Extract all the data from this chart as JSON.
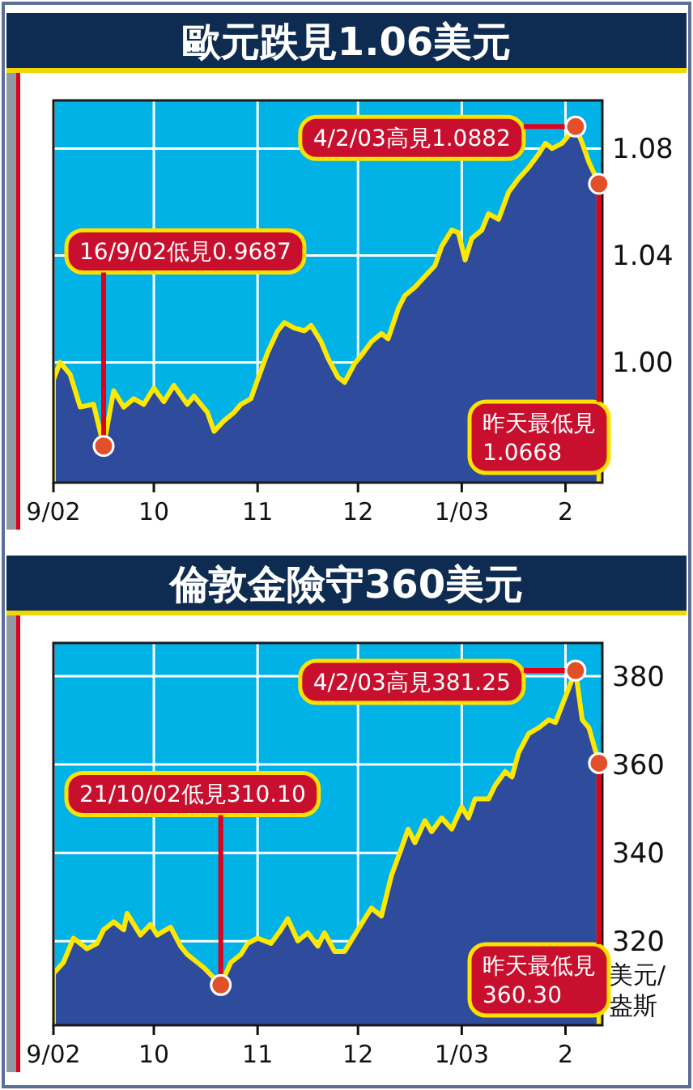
{
  "chart_data": [
    {
      "type": "area",
      "title": "歐元跌見1.06美元",
      "x": [
        "2002-09-01",
        "2002-09-03",
        "2002-09-06",
        "2002-09-09",
        "2002-09-13",
        "2002-09-16",
        "2002-09-19",
        "2002-09-22",
        "2002-09-25",
        "2002-09-28",
        "2002-10-01",
        "2002-10-04",
        "2002-10-07",
        "2002-10-11",
        "2002-10-13",
        "2002-10-17",
        "2002-10-19",
        "2002-10-22",
        "2002-10-25",
        "2002-10-27",
        "2002-10-30",
        "2002-11-01",
        "2002-11-04",
        "2002-11-07",
        "2002-11-09",
        "2002-11-12",
        "2002-11-15",
        "2002-11-17",
        "2002-11-20",
        "2002-11-22",
        "2002-11-25",
        "2002-11-27",
        "2002-11-30",
        "2002-12-02",
        "2002-12-05",
        "2002-12-08",
        "2002-12-10",
        "2002-12-13",
        "2002-12-15",
        "2002-12-18",
        "2002-12-21",
        "2002-12-24",
        "2002-12-26",
        "2002-12-29",
        "2002-12-31",
        "2003-01-02",
        "2003-01-04",
        "2003-01-07",
        "2003-01-09",
        "2003-01-12",
        "2003-01-15",
        "2003-01-18",
        "2003-01-21",
        "2003-01-24",
        "2003-01-26",
        "2003-01-28",
        "2003-01-31",
        "2003-02-04",
        "2003-02-06",
        "2003-02-08",
        "2003-02-11"
      ],
      "series": [
        {
          "color": "#2e4b9c",
          "values": [
            0.9935,
            1.0,
            0.9955,
            0.9833,
            0.9843,
            0.9687,
            0.9894,
            0.9833,
            0.9864,
            0.9843,
            0.9904,
            0.9853,
            0.9914,
            0.9843,
            0.9874,
            0.9813,
            0.9742,
            0.9782,
            0.9813,
            0.9843,
            0.9864,
            0.9935,
            1.0037,
            1.0118,
            1.0149,
            1.0128,
            1.0118,
            1.0138,
            1.0077,
            1.0016,
            0.9945,
            0.9925,
            0.9996,
            1.0026,
            1.0077,
            1.0108,
            1.0088,
            1.02,
            1.025,
            1.0281,
            1.0322,
            1.0362,
            1.0434,
            1.0495,
            1.0485,
            1.0383,
            1.0464,
            1.0495,
            1.0556,
            1.0535,
            1.0637,
            1.0688,
            1.0729,
            1.078,
            1.082,
            1.08,
            1.082,
            1.0882,
            1.082,
            1.0749,
            1.0668
          ]
        }
      ],
      "xlim": [
        "2002-09-01",
        "2003-02-12"
      ],
      "xticks": [
        {
          "value": "2002-09-01",
          "label": "9/02"
        },
        {
          "value": "2002-10-01",
          "label": "10"
        },
        {
          "value": "2002-11-01",
          "label": "11"
        },
        {
          "value": "2002-12-01",
          "label": "12"
        },
        {
          "value": "2003-01-01",
          "label": "1/03"
        },
        {
          "value": "2003-02-01",
          "label": "2"
        }
      ],
      "ylim": [
        0.955,
        1.098
      ],
      "yticks": [
        {
          "value": 1.0,
          "label": "1.00"
        },
        1.04,
        1.08
      ],
      "grid": true,
      "annotations": [
        {
          "text": "4/2/03高見1.0882",
          "x": "2003-02-04",
          "y": 1.0882
        },
        {
          "text": "16/9/02低見0.9687",
          "x": "2002-09-16",
          "y": 0.9687
        },
        {
          "text": "昨天最低見\n1.0668",
          "x": "2003-02-11",
          "y": 1.0668
        }
      ]
    },
    {
      "type": "area",
      "title": "倫敦金險守360美元",
      "ylabel": "美元/盎斯",
      "x": [
        "2002-09-01",
        "2002-09-04",
        "2002-09-07",
        "2002-09-11",
        "2002-09-14",
        "2002-09-16",
        "2002-09-19",
        "2002-09-22",
        "2002-09-23",
        "2002-09-27",
        "2002-09-30",
        "2002-10-02",
        "2002-10-06",
        "2002-10-09",
        "2002-10-11",
        "2002-10-14",
        "2002-10-16",
        "2002-10-21",
        "2002-10-24",
        "2002-10-27",
        "2002-10-29",
        "2002-11-01",
        "2002-11-05",
        "2002-11-08",
        "2002-11-10",
        "2002-11-13",
        "2002-11-16",
        "2002-11-19",
        "2002-11-21",
        "2002-11-24",
        "2002-11-27",
        "2002-11-30",
        "2002-12-03",
        "2002-12-05",
        "2002-12-08",
        "2002-12-11",
        "2002-12-14",
        "2002-12-16",
        "2002-12-18",
        "2002-12-21",
        "2002-12-23",
        "2002-12-26",
        "2002-12-29",
        "2003-01-01",
        "2003-01-03",
        "2003-01-05",
        "2003-01-09",
        "2003-01-11",
        "2003-01-14",
        "2003-01-16",
        "2003-01-18",
        "2003-01-21",
        "2003-01-24",
        "2003-01-27",
        "2003-01-29",
        "2003-02-04",
        "2003-02-06",
        "2003-02-08",
        "2003-02-11"
      ],
      "series": [
        {
          "color": "#2e4b9c",
          "values": [
            312.7,
            315.2,
            320.7,
            318.3,
            319.5,
            322.6,
            324.4,
            322.6,
            326.3,
            321.4,
            323.8,
            321.4,
            323.2,
            318.9,
            317.0,
            315.2,
            314.0,
            310.1,
            315.2,
            317.0,
            319.5,
            320.7,
            319.5,
            322.6,
            325.1,
            320.1,
            321.9,
            318.9,
            321.9,
            317.7,
            317.7,
            321.4,
            325.1,
            327.5,
            325.7,
            334.9,
            341.1,
            345.4,
            342.3,
            347.3,
            344.8,
            347.9,
            345.4,
            350.4,
            347.9,
            352.2,
            352.2,
            355.3,
            358.4,
            357.2,
            362.7,
            367.0,
            368.3,
            370.1,
            369.5,
            381.25,
            370.1,
            368.3,
            360.3
          ]
        }
      ],
      "xlim": [
        "2002-09-01",
        "2003-02-12"
      ],
      "xticks": [
        {
          "value": "2002-09-01",
          "label": "9/02"
        },
        {
          "value": "2002-10-01",
          "label": "10"
        },
        {
          "value": "2002-11-01",
          "label": "11"
        },
        {
          "value": "2002-12-01",
          "label": "12"
        },
        {
          "value": "2003-01-01",
          "label": "1/03"
        },
        {
          "value": "2003-02-01",
          "label": "2"
        }
      ],
      "ylim": [
        301,
        387.5
      ],
      "yticks": [
        320,
        340,
        360,
        380
      ],
      "grid": true,
      "annotations": [
        {
          "text": "4/2/03高見381.25",
          "x": "2003-02-04",
          "y": 381.25
        },
        {
          "text": "21/10/02低見310.10",
          "x": "2002-10-21",
          "y": 310.1
        },
        {
          "text": "昨天最低見\n360.30",
          "x": "2003-02-11",
          "y": 360.3
        }
      ]
    }
  ]
}
